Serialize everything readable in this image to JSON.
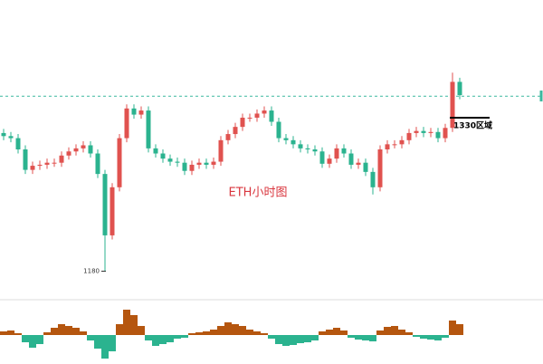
{
  "chart_data": [
    {
      "type": "candlestick",
      "title": "ETH小时图",
      "title_color": "#d9363e",
      "up_color": "#e0524f",
      "down_color": "#2bb38f",
      "ylim": [
        1153,
        1445
      ],
      "reference_line": {
        "value": 1351,
        "color": "#3cb89f"
      },
      "low_mark": 1180,
      "annotations": [
        {
          "text": "1330区域",
          "value": 1330
        }
      ],
      "open": [
        1315,
        1312,
        1310,
        1299,
        1279,
        1283,
        1284,
        1286,
        1286,
        1293,
        1297,
        1300,
        1303,
        1295,
        1275,
        1215,
        1262,
        1310,
        1339,
        1333,
        1337,
        1300,
        1295,
        1290,
        1287,
        1286,
        1278,
        1284,
        1286,
        1284,
        1287,
        1308,
        1314,
        1321,
        1330,
        1330,
        1334,
        1337,
        1326,
        1310,
        1308,
        1304,
        1300,
        1299,
        1297,
        1285,
        1290,
        1300,
        1295,
        1284,
        1286,
        1277,
        1262,
        1299,
        1304,
        1304,
        1308,
        1315,
        1317,
        1315,
        1316,
        1310,
        1320,
        1365
      ],
      "high": [
        1319,
        1316,
        1314,
        1303,
        1287,
        1288,
        1290,
        1290,
        1297,
        1301,
        1304,
        1307,
        1307,
        1299,
        1279,
        1266,
        1314,
        1343,
        1343,
        1341,
        1341,
        1304,
        1299,
        1294,
        1291,
        1290,
        1288,
        1290,
        1290,
        1291,
        1312,
        1318,
        1325,
        1334,
        1334,
        1338,
        1341,
        1341,
        1330,
        1314,
        1312,
        1308,
        1304,
        1303,
        1301,
        1294,
        1304,
        1304,
        1299,
        1290,
        1290,
        1281,
        1303,
        1308,
        1308,
        1312,
        1319,
        1321,
        1321,
        1320,
        1320,
        1324,
        1374,
        1369
      ],
      "low": [
        1308,
        1306,
        1295,
        1275,
        1275,
        1279,
        1280,
        1282,
        1282,
        1289,
        1293,
        1296,
        1291,
        1271,
        1180,
        1211,
        1258,
        1306,
        1329,
        1329,
        1296,
        1291,
        1286,
        1283,
        1282,
        1274,
        1274,
        1280,
        1280,
        1280,
        1283,
        1304,
        1310,
        1317,
        1326,
        1326,
        1330,
        1322,
        1306,
        1304,
        1300,
        1296,
        1295,
        1293,
        1281,
        1281,
        1286,
        1291,
        1280,
        1280,
        1273,
        1255,
        1258,
        1295,
        1300,
        1300,
        1304,
        1311,
        1311,
        1311,
        1306,
        1306,
        1316,
        1348
      ],
      "close": [
        1312,
        1310,
        1299,
        1279,
        1283,
        1284,
        1286,
        1286,
        1293,
        1297,
        1300,
        1303,
        1295,
        1275,
        1215,
        1262,
        1310,
        1339,
        1333,
        1337,
        1300,
        1295,
        1290,
        1287,
        1286,
        1278,
        1284,
        1286,
        1284,
        1287,
        1308,
        1314,
        1321,
        1330,
        1330,
        1334,
        1337,
        1326,
        1310,
        1308,
        1304,
        1300,
        1299,
        1297,
        1285,
        1290,
        1300,
        1295,
        1284,
        1286,
        1277,
        1262,
        1299,
        1304,
        1304,
        1308,
        1315,
        1317,
        1315,
        1316,
        1310,
        1320,
        1365,
        1352
      ]
    },
    {
      "type": "histogram-bar",
      "pos_color": "#b5560f",
      "neg_color": "#2bb38f",
      "ylim": [
        -30,
        30
      ],
      "values": [
        4,
        5,
        2,
        -8,
        -14,
        -10,
        3,
        8,
        12,
        10,
        8,
        4,
        -6,
        -15,
        -26,
        -18,
        12,
        28,
        22,
        10,
        -6,
        -12,
        -10,
        -8,
        -4,
        -3,
        2,
        3,
        4,
        6,
        10,
        14,
        12,
        10,
        6,
        4,
        2,
        -4,
        -10,
        -12,
        -11,
        -9,
        -8,
        -6,
        4,
        6,
        8,
        5,
        -3,
        -5,
        -6,
        -7,
        5,
        9,
        10,
        6,
        3,
        -2,
        -4,
        -5,
        -6,
        -3,
        16,
        12
      ]
    }
  ]
}
